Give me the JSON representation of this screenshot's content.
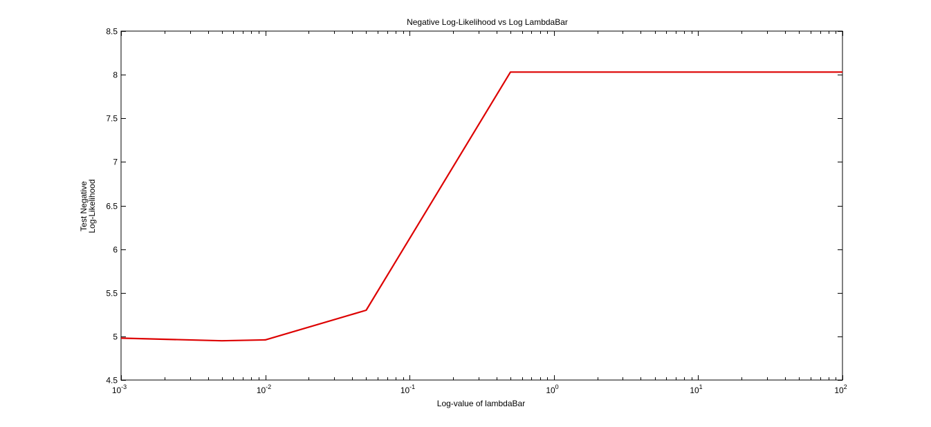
{
  "chart_data": {
    "type": "line",
    "title": "Negative Log-Likelihood vs Log LambdaBar",
    "xlabel": "Log-value of lambdaBar",
    "ylabel": [
      "Test Negative",
      "Log-Likelihood"
    ],
    "x_scale": "log",
    "xlim": [
      0.001,
      100
    ],
    "ylim": [
      4.5,
      8.5
    ],
    "x_ticks": [
      {
        "value": 0.001,
        "base": "10",
        "exp": "-3"
      },
      {
        "value": 0.01,
        "base": "10",
        "exp": "-2"
      },
      {
        "value": 0.1,
        "base": "10",
        "exp": "-1"
      },
      {
        "value": 1,
        "base": "10",
        "exp": "0"
      },
      {
        "value": 10,
        "base": "10",
        "exp": "1"
      },
      {
        "value": 100,
        "base": "10",
        "exp": "2"
      }
    ],
    "y_ticks": [
      "4.5",
      "5",
      "5.5",
      "6",
      "6.5",
      "7",
      "7.5",
      "8",
      "8.5"
    ],
    "grid": false,
    "series": [
      {
        "color": "#dd0000",
        "x": [
          0.001,
          0.005,
          0.01,
          0.05,
          0.5,
          1,
          10,
          100
        ],
        "y": [
          4.98,
          4.95,
          4.96,
          5.3,
          8.03,
          8.03,
          8.03,
          8.03
        ]
      }
    ]
  }
}
